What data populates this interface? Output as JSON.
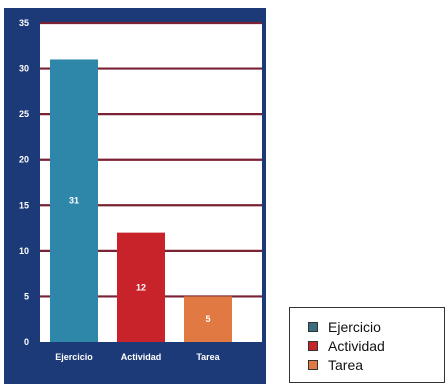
{
  "chart_data": {
    "type": "bar",
    "categories": [
      "Ejercicio",
      "Actividad",
      "Tarea"
    ],
    "values": [
      31,
      12,
      5
    ],
    "data_labels": [
      "31",
      "12",
      "5"
    ],
    "bar_colors": [
      "#2e86a8",
      "#c8232b",
      "#e07a42"
    ],
    "ylim": [
      0,
      35
    ],
    "yticks": [
      0,
      5,
      10,
      15,
      20,
      25,
      30,
      35
    ],
    "grid": true,
    "legend_position": "bottom-right",
    "title": "",
    "xlabel": "",
    "ylabel": ""
  },
  "theme": {
    "frame_color": "#1d3a78",
    "plot_background": "#ffffff",
    "grid_color": "#7a2233",
    "axis_text_color": "#ffffff"
  },
  "legend": {
    "items": [
      {
        "label": "Ejercicio",
        "color": "#3a6e7e"
      },
      {
        "label": "Actividad",
        "color": "#c8232b"
      },
      {
        "label": "Tarea",
        "color": "#e07a42"
      }
    ]
  }
}
